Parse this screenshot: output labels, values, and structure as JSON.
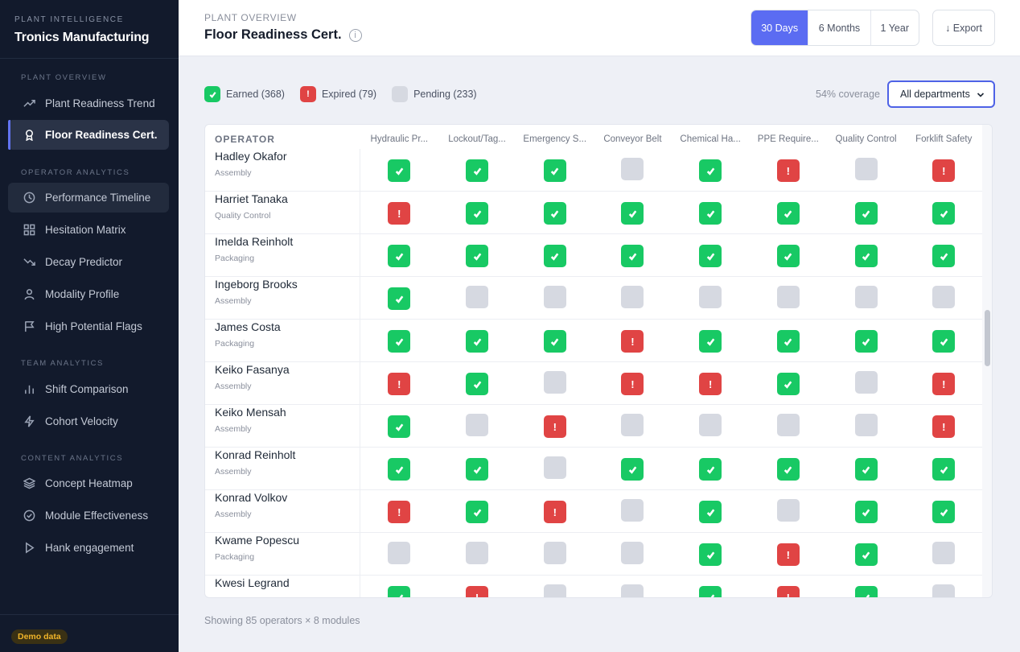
{
  "sidebar": {
    "eyebrow": "PLANT INTELLIGENCE",
    "brand": "Tronics Manufacturing",
    "sections": [
      {
        "title": "PLANT OVERVIEW"
      },
      {
        "title": "OPERATOR ANALYTICS"
      },
      {
        "title": "TEAM ANALYTICS"
      },
      {
        "title": "CONTENT ANALYTICS"
      }
    ],
    "items": [
      {
        "label": "Plant Readiness Trend",
        "icon": "trend-icon"
      },
      {
        "label": "Floor Readiness Cert.",
        "icon": "award-icon"
      },
      {
        "label": "Performance Timeline",
        "icon": "clock-icon"
      },
      {
        "label": "Hesitation Matrix",
        "icon": "grid-icon"
      },
      {
        "label": "Decay Predictor",
        "icon": "trend-down-icon"
      },
      {
        "label": "Modality Profile",
        "icon": "user-icon"
      },
      {
        "label": "High Potential Flags",
        "icon": "flag-icon"
      },
      {
        "label": "Shift Comparison",
        "icon": "bar-chart-icon"
      },
      {
        "label": "Cohort Velocity",
        "icon": "bolt-icon"
      },
      {
        "label": "Concept Heatmap",
        "icon": "layers-icon"
      },
      {
        "label": "Module Effectiveness",
        "icon": "check-circle-icon"
      },
      {
        "label": "Hank engagement",
        "icon": "play-icon"
      }
    ],
    "demo_badge": "Demo data"
  },
  "header": {
    "eyebrow": "PLANT OVERVIEW",
    "title": "Floor Readiness Cert.",
    "ranges": [
      "30 Days",
      "6 Months",
      "1 Year"
    ],
    "active_range": "30 Days",
    "export_label": "↓ Export"
  },
  "legend": {
    "earned": "Earned (368)",
    "expired": "Expired (79)",
    "pending": "Pending (233)",
    "coverage": "54% coverage",
    "department_filter": "All departments"
  },
  "grid": {
    "operator_header": "OPERATOR",
    "modules": [
      "Hydraulic Pr...",
      "Lockout/Tag...",
      "Emergency S...",
      "Conveyor Belt",
      "Chemical Ha...",
      "PPE Require...",
      "Quality Control",
      "Forklift Safety"
    ],
    "rows": [
      {
        "name": "Hadley Okafor",
        "dept": "Assembly",
        "status": [
          "E",
          "E",
          "E",
          "P",
          "E",
          "X",
          "P",
          "X"
        ]
      },
      {
        "name": "Harriet Tanaka",
        "dept": "Quality Control",
        "status": [
          "X",
          "E",
          "E",
          "E",
          "E",
          "E",
          "E",
          "E"
        ]
      },
      {
        "name": "Imelda Reinholt",
        "dept": "Packaging",
        "status": [
          "E",
          "E",
          "E",
          "E",
          "E",
          "E",
          "E",
          "E"
        ]
      },
      {
        "name": "Ingeborg Brooks",
        "dept": "Assembly",
        "status": [
          "E",
          "P",
          "P",
          "P",
          "P",
          "P",
          "P",
          "P"
        ]
      },
      {
        "name": "James Costa",
        "dept": "Packaging",
        "status": [
          "E",
          "E",
          "E",
          "X",
          "E",
          "E",
          "E",
          "E"
        ]
      },
      {
        "name": "Keiko Fasanya",
        "dept": "Assembly",
        "status": [
          "X",
          "E",
          "P",
          "X",
          "X",
          "E",
          "P",
          "X"
        ]
      },
      {
        "name": "Keiko Mensah",
        "dept": "Assembly",
        "status": [
          "E",
          "P",
          "X",
          "P",
          "P",
          "P",
          "P",
          "X"
        ]
      },
      {
        "name": "Konrad Reinholt",
        "dept": "Assembly",
        "status": [
          "E",
          "E",
          "P",
          "E",
          "E",
          "E",
          "E",
          "E"
        ]
      },
      {
        "name": "Konrad Volkov",
        "dept": "Assembly",
        "status": [
          "X",
          "E",
          "X",
          "P",
          "E",
          "P",
          "E",
          "E"
        ]
      },
      {
        "name": "Kwame Popescu",
        "dept": "Packaging",
        "status": [
          "P",
          "P",
          "P",
          "P",
          "E",
          "X",
          "E",
          "P"
        ]
      },
      {
        "name": "Kwesi Legrand",
        "dept": "",
        "status": [
          "E",
          "X",
          "P",
          "P",
          "E",
          "X",
          "E",
          "P"
        ]
      }
    ],
    "status_legend": {
      "E": "earned",
      "X": "expired",
      "P": "pending"
    }
  },
  "footer": {
    "summary": "Showing 85 operators × 8 modules"
  },
  "colors": {
    "earned": "#18c964",
    "expired": "#e04444",
    "pending": "#d6d9e1",
    "accent": "#5b6cf2",
    "sidebar_bg": "#121a2c"
  }
}
